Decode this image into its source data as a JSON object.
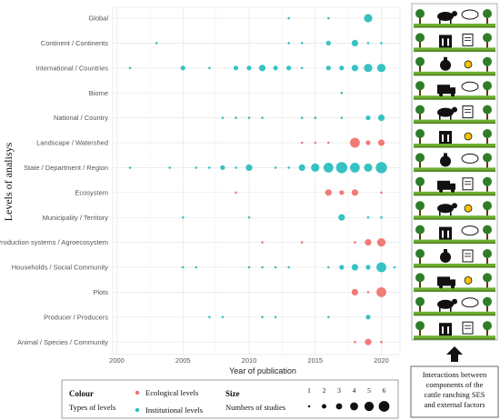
{
  "chart_data": {
    "type": "scatter",
    "title": "",
    "xlabel": "Year of publication",
    "ylabel": "Levels of analisys",
    "xlim": [
      2000,
      2022
    ],
    "xticks": [
      2000,
      2005,
      2010,
      2015,
      2020
    ],
    "categories": [
      "Global",
      "Continent / Continents",
      "International / Countries",
      "Biome",
      "National / Country",
      "Landscape / Watershed",
      "State / Department / Region",
      "Ecosystem",
      "Municipality / Territory",
      "Production systems / Agroecosystem",
      "Households / Social Community",
      "Plots",
      "Producer / Producers",
      "Animal / Species / Community"
    ],
    "colors": {
      "ecological": "#f07470",
      "institutional": "#2bbfbf"
    },
    "series": [
      {
        "name": "Ecological levels",
        "points": [
          {
            "level": "Landscape / Watershed",
            "year": 2014,
            "size": 1
          },
          {
            "level": "Landscape / Watershed",
            "year": 2015,
            "size": 1
          },
          {
            "level": "Landscape / Watershed",
            "year": 2016,
            "size": 1
          },
          {
            "level": "Landscape / Watershed",
            "year": 2018,
            "size": 5
          },
          {
            "level": "Landscape / Watershed",
            "year": 2019,
            "size": 2
          },
          {
            "level": "Landscape / Watershed",
            "year": 2020,
            "size": 3
          },
          {
            "level": "Ecosystem",
            "year": 2009,
            "size": 1
          },
          {
            "level": "Ecosystem",
            "year": 2016,
            "size": 3
          },
          {
            "level": "Ecosystem",
            "year": 2017,
            "size": 2
          },
          {
            "level": "Ecosystem",
            "year": 2018,
            "size": 3
          },
          {
            "level": "Ecosystem",
            "year": 2020,
            "size": 1
          },
          {
            "level": "Production systems / Agroecosystem",
            "year": 2011,
            "size": 1
          },
          {
            "level": "Production systems / Agroecosystem",
            "year": 2014,
            "size": 1
          },
          {
            "level": "Production systems / Agroecosystem",
            "year": 2018,
            "size": 1
          },
          {
            "level": "Production systems / Agroecosystem",
            "year": 2019,
            "size": 3
          },
          {
            "level": "Production systems / Agroecosystem",
            "year": 2020,
            "size": 4
          },
          {
            "level": "Plots",
            "year": 2018,
            "size": 3
          },
          {
            "level": "Plots",
            "year": 2019,
            "size": 1
          },
          {
            "level": "Plots",
            "year": 2020,
            "size": 5
          },
          {
            "level": "Animal / Species / Community",
            "year": 2018,
            "size": 1
          },
          {
            "level": "Animal / Species / Community",
            "year": 2019,
            "size": 3
          },
          {
            "level": "Animal / Species / Community",
            "year": 2020,
            "size": 1
          }
        ]
      },
      {
        "name": "Institutional levels",
        "points": [
          {
            "level": "Global",
            "year": 2013,
            "size": 1
          },
          {
            "level": "Global",
            "year": 2016,
            "size": 1
          },
          {
            "level": "Global",
            "year": 2019,
            "size": 4
          },
          {
            "level": "Continent / Continents",
            "year": 2003,
            "size": 1
          },
          {
            "level": "Continent / Continents",
            "year": 2013,
            "size": 1
          },
          {
            "level": "Continent / Continents",
            "year": 2014,
            "size": 1
          },
          {
            "level": "Continent / Continents",
            "year": 2016,
            "size": 2
          },
          {
            "level": "Continent / Continents",
            "year": 2018,
            "size": 3
          },
          {
            "level": "Continent / Continents",
            "year": 2019,
            "size": 1
          },
          {
            "level": "Continent / Continents",
            "year": 2020,
            "size": 1
          },
          {
            "level": "International / Countries",
            "year": 2001,
            "size": 1
          },
          {
            "level": "International / Countries",
            "year": 2005,
            "size": 2
          },
          {
            "level": "International / Countries",
            "year": 2007,
            "size": 1
          },
          {
            "level": "International / Countries",
            "year": 2009,
            "size": 2
          },
          {
            "level": "International / Countries",
            "year": 2010,
            "size": 2
          },
          {
            "level": "International / Countries",
            "year": 2011,
            "size": 3
          },
          {
            "level": "International / Countries",
            "year": 2012,
            "size": 2
          },
          {
            "level": "International / Countries",
            "year": 2013,
            "size": 2
          },
          {
            "level": "International / Countries",
            "year": 2014,
            "size": 1
          },
          {
            "level": "International / Countries",
            "year": 2016,
            "size": 2
          },
          {
            "level": "International / Countries",
            "year": 2017,
            "size": 2
          },
          {
            "level": "International / Countries",
            "year": 2018,
            "size": 3
          },
          {
            "level": "International / Countries",
            "year": 2019,
            "size": 4
          },
          {
            "level": "International / Countries",
            "year": 2020,
            "size": 4
          },
          {
            "level": "Biome",
            "year": 2017,
            "size": 1
          },
          {
            "level": "National / Country",
            "year": 2008,
            "size": 1
          },
          {
            "level": "National / Country",
            "year": 2009,
            "size": 1
          },
          {
            "level": "National / Country",
            "year": 2010,
            "size": 1
          },
          {
            "level": "National / Country",
            "year": 2011,
            "size": 1
          },
          {
            "level": "National / Country",
            "year": 2014,
            "size": 1
          },
          {
            "level": "National / Country",
            "year": 2015,
            "size": 1
          },
          {
            "level": "National / Country",
            "year": 2017,
            "size": 1
          },
          {
            "level": "National / Country",
            "year": 2019,
            "size": 2
          },
          {
            "level": "National / Country",
            "year": 2020,
            "size": 3
          },
          {
            "level": "State / Department / Region",
            "year": 2001,
            "size": 1
          },
          {
            "level": "State / Department / Region",
            "year": 2004,
            "size": 1
          },
          {
            "level": "State / Department / Region",
            "year": 2006,
            "size": 1
          },
          {
            "level": "State / Department / Region",
            "year": 2007,
            "size": 1
          },
          {
            "level": "State / Department / Region",
            "year": 2008,
            "size": 2
          },
          {
            "level": "State / Department / Region",
            "year": 2009,
            "size": 1
          },
          {
            "level": "State / Department / Region",
            "year": 2010,
            "size": 3
          },
          {
            "level": "State / Department / Region",
            "year": 2012,
            "size": 1
          },
          {
            "level": "State / Department / Region",
            "year": 2013,
            "size": 1
          },
          {
            "level": "State / Department / Region",
            "year": 2014,
            "size": 3
          },
          {
            "level": "State / Department / Region",
            "year": 2015,
            "size": 4
          },
          {
            "level": "State / Department / Region",
            "year": 2016,
            "size": 5
          },
          {
            "level": "State / Department / Region",
            "year": 2017,
            "size": 6
          },
          {
            "level": "State / Department / Region",
            "year": 2018,
            "size": 5
          },
          {
            "level": "State / Department / Region",
            "year": 2019,
            "size": 4
          },
          {
            "level": "State / Department / Region",
            "year": 2020,
            "size": 6
          },
          {
            "level": "Municipality / Territory",
            "year": 2005,
            "size": 1
          },
          {
            "level": "Municipality / Territory",
            "year": 2010,
            "size": 1
          },
          {
            "level": "Municipality / Territory",
            "year": 2017,
            "size": 3
          },
          {
            "level": "Municipality / Territory",
            "year": 2019,
            "size": 1
          },
          {
            "level": "Municipality / Territory",
            "year": 2020,
            "size": 1
          },
          {
            "level": "Households / Social Community",
            "year": 2005,
            "size": 1
          },
          {
            "level": "Households / Social Community",
            "year": 2006,
            "size": 1
          },
          {
            "level": "Households / Social Community",
            "year": 2010,
            "size": 1
          },
          {
            "level": "Households / Social Community",
            "year": 2011,
            "size": 1
          },
          {
            "level": "Households / Social Community",
            "year": 2012,
            "size": 1
          },
          {
            "level": "Households / Social Community",
            "year": 2013,
            "size": 1
          },
          {
            "level": "Households / Social Community",
            "year": 2016,
            "size": 1
          },
          {
            "level": "Households / Social Community",
            "year": 2017,
            "size": 2
          },
          {
            "level": "Households / Social Community",
            "year": 2018,
            "size": 3
          },
          {
            "level": "Households / Social Community",
            "year": 2019,
            "size": 2
          },
          {
            "level": "Households / Social Community",
            "year": 2020,
            "size": 5
          },
          {
            "level": "Households / Social Community",
            "year": 2021,
            "size": 1
          },
          {
            "level": "Producer / Producers",
            "year": 2007,
            "size": 1
          },
          {
            "level": "Producer / Producers",
            "year": 2008,
            "size": 1
          },
          {
            "level": "Producer / Producers",
            "year": 2011,
            "size": 1
          },
          {
            "level": "Producer / Producers",
            "year": 2012,
            "size": 1
          },
          {
            "level": "Producer / Producers",
            "year": 2016,
            "size": 1
          },
          {
            "level": "Producer / Producers",
            "year": 2019,
            "size": 2
          }
        ]
      }
    ],
    "legend": {
      "colour_title": "Colour",
      "colour_subtitle": "Types of levels",
      "size_title": "Size",
      "size_subtitle": "Numbers of studies",
      "size_values": [
        1,
        2,
        3,
        4,
        5,
        6
      ],
      "placement": "bottom"
    },
    "grid": true
  },
  "side_panel": {
    "caption": [
      "Interactions between",
      "components of the",
      "cattle ranching SES",
      "and external factors"
    ]
  }
}
